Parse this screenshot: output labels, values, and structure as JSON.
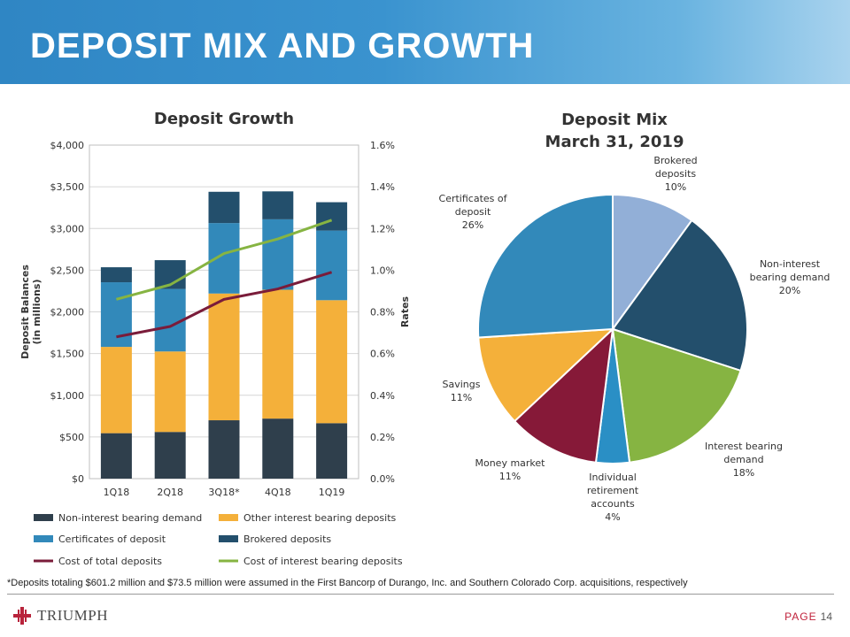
{
  "header": {
    "title": "DEPOSIT MIX AND GROWTH"
  },
  "chart_data": [
    {
      "type": "bar",
      "subtype": "stacked-bar-with-lines",
      "title": "Deposit Growth",
      "categories": [
        "1Q18",
        "2Q18",
        "3Q18*",
        "4Q18",
        "1Q19"
      ],
      "ylabel": "Deposit Balances\n(in millions)",
      "ylim": [
        0,
        4000
      ],
      "yticks": [
        "$0",
        "$500",
        "$1,000",
        "$1,500",
        "$2,000",
        "$2,500",
        "$3,000",
        "$3,500",
        "$4,000"
      ],
      "y2label": "Rates",
      "y2lim": [
        0,
        1.6
      ],
      "y2ticks": [
        "0.0%",
        "0.2%",
        "0.4%",
        "0.6%",
        "0.8%",
        "1.0%",
        "1.2%",
        "1.4%",
        "1.6%"
      ],
      "series": [
        {
          "name": "Non-interest bearing demand",
          "kind": "bar",
          "color": "#2f3f4c",
          "values": [
            545,
            560,
            700,
            720,
            665
          ]
        },
        {
          "name": "Other interest bearing deposits",
          "kind": "bar",
          "color": "#f4b03a",
          "values": [
            1035,
            965,
            1520,
            1545,
            1475
          ]
        },
        {
          "name": "Certificates of deposit",
          "kind": "bar",
          "color": "#3289ba",
          "values": [
            775,
            750,
            845,
            845,
            835
          ]
        },
        {
          "name": "Brokered deposits",
          "kind": "bar",
          "color": "#234f6c",
          "values": [
            180,
            345,
            375,
            335,
            340
          ]
        },
        {
          "name": "Cost of total deposits",
          "kind": "line",
          "axis": "right",
          "color": "#7a1c3a",
          "values": [
            0.68,
            0.73,
            0.86,
            0.91,
            0.99
          ]
        },
        {
          "name": "Cost of interest bearing deposits",
          "kind": "line",
          "axis": "right",
          "color": "#86b442",
          "values": [
            0.86,
            0.93,
            1.08,
            1.15,
            1.24
          ]
        }
      ],
      "legend": "bottom",
      "grid": true
    },
    {
      "type": "pie",
      "title": "Deposit Mix\nMarch 31, 2019",
      "slices": [
        {
          "label": "Brokered\ndeposits",
          "pct": "10%",
          "value": 10,
          "color": "#92afd7"
        },
        {
          "label": "Non-interest\nbearing demand",
          "pct": "20%",
          "value": 20,
          "color": "#234f6c"
        },
        {
          "label": "Interest bearing\ndemand",
          "pct": "18%",
          "value": 18,
          "color": "#86b442"
        },
        {
          "label": "Individual\nretirement\naccounts",
          "pct": "4%",
          "value": 4,
          "color": "#2a8fc5"
        },
        {
          "label": "Money market",
          "pct": "11%",
          "value": 11,
          "color": "#861938"
        },
        {
          "label": "Savings",
          "pct": "11%",
          "value": 11,
          "color": "#f4b03a"
        },
        {
          "label": "Certificates of\ndeposit",
          "pct": "26%",
          "value": 26,
          "color": "#3289ba"
        }
      ]
    }
  ],
  "footnote": "*Deposits totaling $601.2 million and $73.5 million were assumed in the First Bancorp of Durango, Inc.  and Southern Colorado Corp. acquisitions, respectively",
  "footer": {
    "logo_text": "TRIUMPH",
    "page_label": "PAGE",
    "page_number": "14"
  }
}
